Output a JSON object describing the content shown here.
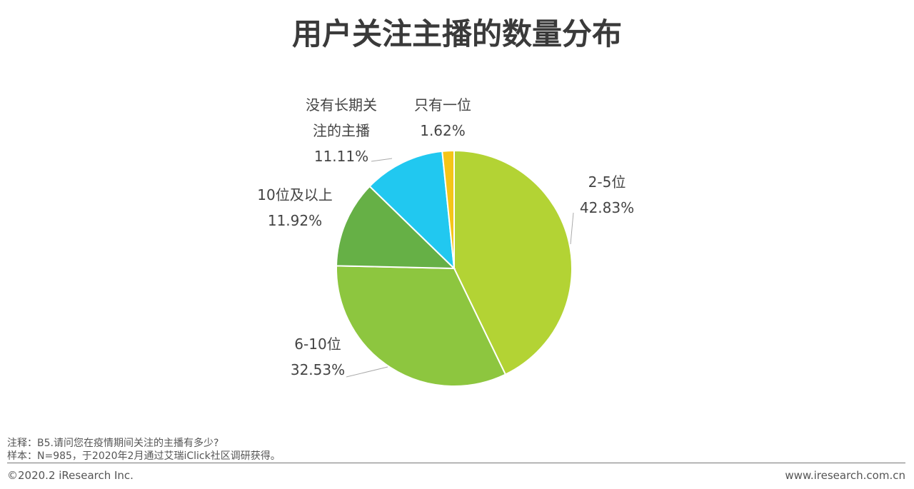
{
  "chart_data": {
    "type": "pie",
    "title": "用户关注主播的数量分布",
    "categories": [
      "2-5位",
      "6-10位",
      "10位及以上",
      "没有长期关注的主播",
      "只有一位"
    ],
    "values": [
      42.83,
      32.53,
      11.92,
      11.11,
      1.62
    ],
    "value_labels": [
      "42.83%",
      "32.53%",
      "11.92%",
      "11.11%",
      "1.62%"
    ],
    "colors": [
      "#b3d334",
      "#8dc63f",
      "#66b046",
      "#21c8f0",
      "#f5c518"
    ]
  },
  "notes": [
    "注释：B5.请问您在疫情期间关注的主播有多少?",
    "样本：N=985，于2020年2月通过艾瑞iClick社区调研获得。"
  ],
  "footer": {
    "left": "©2020.2 iResearch Inc.",
    "right": "www.iresearch.com.cn"
  }
}
